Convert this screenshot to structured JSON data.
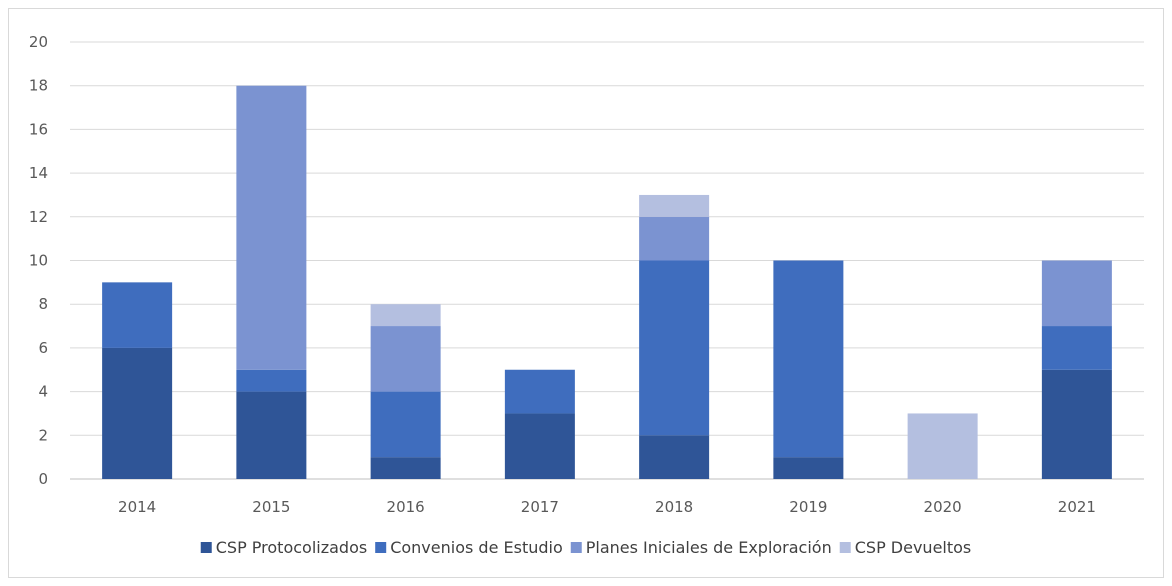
{
  "chart_data": {
    "type": "bar",
    "stacked": true,
    "categories": [
      "2014",
      "2015",
      "2016",
      "2017",
      "2018",
      "2019",
      "2020",
      "2021"
    ],
    "series": [
      {
        "name": "CSP Protocolizados",
        "color": "#2f5597",
        "values": [
          6,
          4,
          1,
          3,
          2,
          1,
          0,
          5
        ]
      },
      {
        "name": "Convenios de Estudio",
        "color": "#3f6dbe",
        "values": [
          3,
          1,
          3,
          2,
          8,
          9,
          0,
          2
        ]
      },
      {
        "name": "Planes Iniciales de Exploración",
        "color": "#7b93d1",
        "values": [
          0,
          13,
          3,
          0,
          2,
          0,
          0,
          3
        ]
      },
      {
        "name": "CSP Devueltos",
        "color": "#b4bfe0",
        "values": [
          0,
          0,
          1,
          0,
          1,
          0,
          3,
          0
        ]
      }
    ],
    "ylim": [
      0,
      20
    ],
    "yticks": [
      "0",
      "2",
      "4",
      "6",
      "8",
      "10",
      "12",
      "14",
      "16",
      "18",
      "20"
    ],
    "grid": true,
    "legend_position": "bottom",
    "title": "",
    "xlabel": "",
    "ylabel": ""
  }
}
